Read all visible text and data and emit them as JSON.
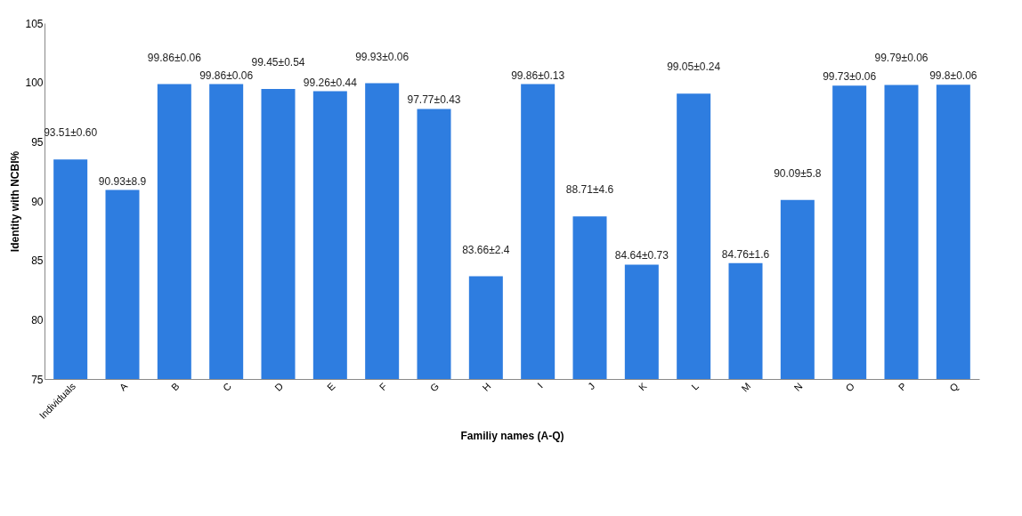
{
  "chart_data": {
    "type": "bar",
    "xlabel": "Familiy names (A-Q)",
    "ylabel": "Identity with NCBI%",
    "categories": [
      "Individuals",
      "A",
      "B",
      "C",
      "D",
      "E",
      "F",
      "G",
      "H",
      "I",
      "J",
      "K",
      "L",
      "M",
      "N",
      "O",
      "P",
      "Q"
    ],
    "values": [
      93.51,
      90.93,
      99.86,
      99.86,
      99.45,
      99.26,
      99.93,
      97.77,
      83.66,
      99.86,
      88.71,
      84.64,
      99.05,
      84.76,
      90.09,
      99.73,
      99.79,
      99.8
    ],
    "value_labels": [
      "93.51±0.60",
      "90.93±8.9",
      "99.86±0.06",
      "99.86±0.06",
      "99.45±0.54",
      "99.26±0.44",
      "99.93±0.06",
      "97.77±0.43",
      "83.66±2.4",
      "99.86±0.13",
      "88.71±4.6",
      "84.64±0.73",
      "99.05±0.24",
      "84.76±1.6",
      "90.09±5.8",
      "99.73±0.06",
      "99.79±0.06",
      "99.8±0.06"
    ],
    "color": "#2e7de0",
    "ylim": [
      75,
      105
    ],
    "yticks": [
      75,
      80,
      85,
      90,
      95,
      100,
      105
    ],
    "grid": false
  }
}
